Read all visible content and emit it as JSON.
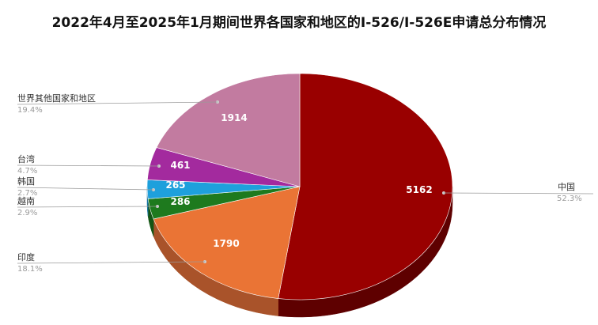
{
  "chart_data": {
    "type": "pie",
    "title": "2022年4月至2025年1月期间世界各国家和地区的I-526/I-526E申请总分布情况",
    "slices": [
      {
        "name": "中国",
        "value": 5162,
        "value_label": "5162",
        "percent": "52.3%",
        "color": "#990000",
        "side_color": "#5e0000"
      },
      {
        "name": "印度",
        "value": 1790,
        "value_label": "1790",
        "percent": "18.1%",
        "color": "#ea7435",
        "side_color": "#a9532a"
      },
      {
        "name": "越南",
        "value": 286,
        "value_label": "286",
        "percent": "2.9%",
        "color": "#1e7a1e",
        "side_color": "#145514"
      },
      {
        "name": "韩国",
        "value": 265,
        "value_label": "265",
        "percent": "2.7%",
        "color": "#1ea0dc",
        "side_color": "#16739e"
      },
      {
        "name": "台湾",
        "value": 461,
        "value_label": "461",
        "percent": "4.7%",
        "color": "#a32a9e",
        "side_color": "#741e70"
      },
      {
        "name": "世界其他国家和地区",
        "value": 1914,
        "value_label": "1914",
        "percent": "19.4%",
        "color": "#c27ba0",
        "side_color": "#8c5874"
      }
    ]
  }
}
